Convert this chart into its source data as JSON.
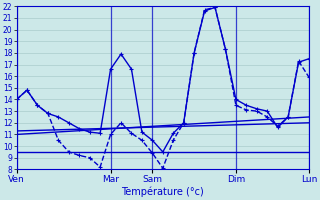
{
  "background_color": "#cce8e8",
  "grid_color": "#aacccc",
  "line_color": "#0000cc",
  "ylim": [
    8,
    22
  ],
  "yticks": [
    8,
    9,
    10,
    11,
    12,
    13,
    14,
    15,
    16,
    17,
    18,
    19,
    20,
    21,
    22
  ],
  "xlabel": "Température (°c)",
  "xlabel_color": "#0000cc",
  "tick_label_color": "#0000cc",
  "day_labels": [
    "Ven",
    "Mar",
    "Sam",
    "Dim",
    "Lun"
  ],
  "day_positions": [
    0,
    9,
    13,
    21,
    28
  ],
  "xlim": [
    0,
    28
  ],
  "line1": {
    "x": [
      0,
      1,
      2,
      3,
      4,
      5,
      6,
      7,
      8,
      9,
      10,
      11,
      12,
      13,
      14,
      15,
      16,
      17,
      18,
      19,
      20,
      21,
      22,
      23,
      24,
      25,
      26,
      27,
      28
    ],
    "y": [
      14,
      14.8,
      13.5,
      12.8,
      12.5,
      12.0,
      11.5,
      11.2,
      11.1,
      16.6,
      17.9,
      16.6,
      11.2,
      10.5,
      9.5,
      11.1,
      12.0,
      18.0,
      21.6,
      21.9,
      18.3,
      14.0,
      13.5,
      13.2,
      13.0,
      11.6,
      12.5,
      17.2,
      17.5
    ]
  },
  "line2": {
    "x": [
      0,
      1,
      2,
      3,
      4,
      5,
      6,
      7,
      8,
      9,
      10,
      11,
      12,
      13,
      14,
      15,
      16,
      17,
      18,
      19,
      20,
      21,
      22,
      23,
      24,
      25,
      26,
      27,
      28
    ],
    "y": [
      14,
      14.8,
      13.5,
      12.8,
      10.5,
      9.5,
      9.2,
      9.0,
      8.2,
      11.0,
      12.0,
      11.1,
      10.5,
      9.4,
      8.1,
      10.5,
      12.0,
      18.0,
      21.7,
      21.9,
      18.3,
      13.5,
      13.1,
      13.0,
      12.5,
      11.7,
      12.5,
      17.3,
      15.9
    ]
  },
  "line3": {
    "x": [
      0,
      28
    ],
    "y": [
      11.0,
      12.5
    ]
  },
  "line4": {
    "x": [
      0,
      28
    ],
    "y": [
      9.5,
      9.5
    ]
  },
  "line5": {
    "x": [
      0,
      28
    ],
    "y": [
      11.3,
      12.0
    ]
  }
}
